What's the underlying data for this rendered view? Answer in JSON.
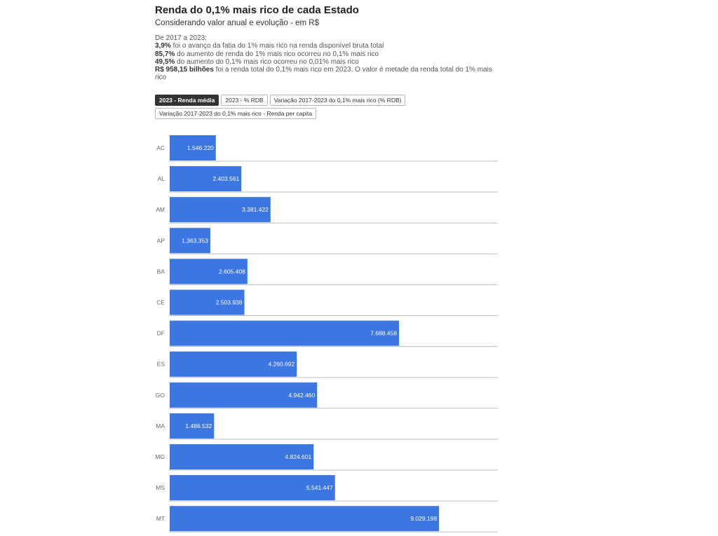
{
  "header": {
    "title": "Renda do 0,1% mais rico de cada Estado",
    "subtitle": "Considerando valor anual e evolução - em R$"
  },
  "description": {
    "intro": "De 2017 a 2023:",
    "lines": [
      {
        "bold": "3,9%",
        "text": " foi o avanço da fatia do 1% mais rico na renda disponível bruta total"
      },
      {
        "bold": "85,7%",
        "text": " do aumento de renda do 1% mais rico ocorreu no 0,1% mais rico"
      },
      {
        "bold": "49,5%",
        "text": " do aumento do 0,1% mais rico ocorreu no 0,01% mais rico"
      },
      {
        "bold": "R$ 958,15 bilhões",
        "text": " foi a renda total do 0,1% mais rico em 2023. O valor é metade da renda total do 1% mais rico"
      }
    ]
  },
  "tabs": [
    {
      "label": "2023 - Renda média",
      "active": true
    },
    {
      "label": "2023 - % RDB",
      "active": false
    },
    {
      "label": "Variação 2017-2023 do 0,1% mais rico (% RDB)",
      "active": false
    },
    {
      "label": "Variação 2017-2023 do 0,1% mais rico - Renda per capita",
      "active": false
    }
  ],
  "chart_data": {
    "type": "bar",
    "orientation": "horizontal",
    "categories": [
      "AC",
      "AL",
      "AM",
      "AP",
      "BA",
      "CE",
      "DF",
      "ES",
      "GO",
      "MA",
      "MG",
      "MS",
      "MT"
    ],
    "values": [
      1546220,
      2403561,
      3381422,
      1363353,
      2605408,
      2503938,
      7688458,
      4260692,
      4942460,
      1486532,
      4824601,
      5541447,
      9029198
    ],
    "value_labels": [
      "1.546.220",
      "2.403.561",
      "3.381.422",
      "1.363.353",
      "2.605.408",
      "2.503.938",
      "7.688.458",
      "4.260.692",
      "4.942.460",
      "1.486.532",
      "4.824.601",
      "5.541.447",
      "9.029.198"
    ],
    "xlim": [
      0,
      11000000
    ],
    "bar_color": "#3b76e1",
    "grid": false
  }
}
